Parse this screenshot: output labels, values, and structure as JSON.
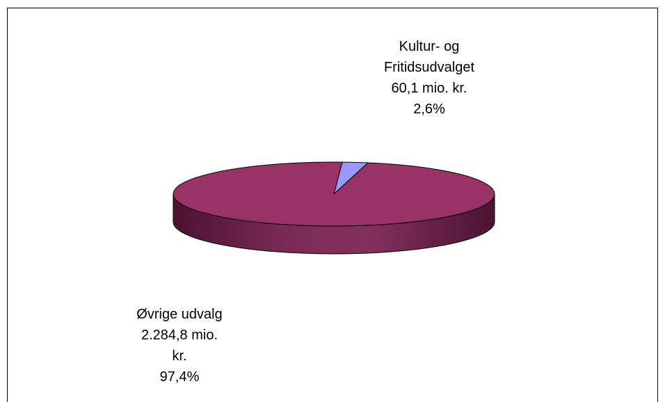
{
  "chart_data": {
    "type": "pie",
    "categories": [
      "Kultur- og Fritidsudvalget",
      "Øvrige udvalg"
    ],
    "values": [
      60.1,
      2284.8
    ],
    "value_labels": [
      "60,1 mio. kr.",
      "2.284,8 mio. kr."
    ],
    "percent_labels": [
      "2,6%",
      "97,4%"
    ],
    "colors": [
      "#9999ff",
      "#993366"
    ],
    "three_d": true
  }
}
